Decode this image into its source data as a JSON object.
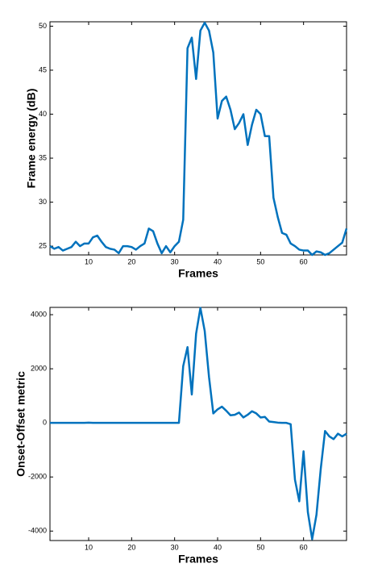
{
  "chart_data": [
    {
      "type": "line",
      "x_label": "Frames",
      "y_label": "Frame energy (dB)",
      "x": [
        1,
        2,
        3,
        4,
        5,
        6,
        7,
        8,
        9,
        10,
        11,
        12,
        13,
        14,
        15,
        16,
        17,
        18,
        19,
        20,
        21,
        22,
        23,
        24,
        25,
        26,
        27,
        28,
        29,
        30,
        31,
        32,
        33,
        34,
        35,
        36,
        37,
        38,
        39,
        40,
        41,
        42,
        43,
        44,
        45,
        46,
        47,
        48,
        49,
        50,
        51,
        52,
        53,
        54,
        55,
        56,
        57,
        58,
        59,
        60,
        61,
        62,
        63,
        64,
        65,
        66,
        67,
        68,
        69,
        70
      ],
      "series": [
        {
          "color": "#0072bd",
          "values": [
            25,
            24.7,
            24.9,
            24.5,
            24.7,
            24.9,
            25.5,
            25,
            25.3,
            25.3,
            26,
            26.2,
            25.5,
            24.9,
            24.7,
            24.6,
            24.2,
            25,
            25,
            24.9,
            24.6,
            25,
            25.3,
            27,
            26.7,
            25.3,
            24.2,
            25,
            24.3,
            25,
            25.5,
            28,
            47.5,
            48.7,
            44,
            49.5,
            50.4,
            49.5,
            47,
            39.5,
            41.5,
            42,
            40.5,
            38.3,
            39,
            40,
            36.5,
            38.8,
            40.5,
            40,
            37.5,
            37.5,
            30.5,
            28.3,
            26.5,
            26.3,
            25.3,
            25,
            24.6,
            24.5,
            24.5,
            24,
            24.4,
            24.3,
            24,
            24.2,
            24.6,
            25,
            25.4,
            27
          ]
        }
      ],
      "xlim": [
        1,
        70
      ],
      "ylim": [
        24,
        50.5
      ],
      "xticks": [
        10,
        20,
        30,
        40,
        50,
        60
      ],
      "yticks": [
        25,
        30,
        35,
        40,
        45,
        50
      ]
    },
    {
      "type": "line",
      "x_label": "Frames",
      "y_label": "Onset-Offset metric",
      "x": [
        1,
        2,
        3,
        4,
        5,
        6,
        7,
        8,
        9,
        10,
        11,
        12,
        13,
        14,
        15,
        16,
        17,
        18,
        19,
        20,
        21,
        22,
        23,
        24,
        25,
        26,
        27,
        28,
        29,
        30,
        31,
        32,
        33,
        34,
        35,
        36,
        37,
        38,
        39,
        40,
        41,
        42,
        43,
        44,
        45,
        46,
        47,
        48,
        49,
        50,
        51,
        52,
        53,
        54,
        55,
        56,
        57,
        58,
        59,
        60,
        61,
        62,
        63,
        64,
        65,
        66,
        67,
        68,
        69,
        70
      ],
      "series": [
        {
          "color": "#0072bd",
          "values": [
            0,
            0,
            0,
            0,
            0,
            0,
            0,
            0,
            0,
            10,
            0,
            0,
            0,
            0,
            0,
            0,
            0,
            0,
            0,
            0,
            0,
            0,
            0,
            0,
            0,
            0,
            0,
            0,
            0,
            0,
            0,
            2100,
            2800,
            1050,
            3300,
            4250,
            3400,
            1700,
            350,
            500,
            600,
            450,
            280,
            300,
            380,
            200,
            300,
            430,
            350,
            200,
            220,
            50,
            30,
            10,
            0,
            0,
            -50,
            -2100,
            -2900,
            -1050,
            -3300,
            -4300,
            -3400,
            -1700,
            -300,
            -500,
            -600,
            -400,
            -500,
            -400
          ]
        }
      ],
      "xlim": [
        1,
        70
      ],
      "ylim": [
        -4350,
        4270
      ],
      "xticks": [
        10,
        20,
        30,
        40,
        50,
        60
      ],
      "yticks": [
        -4000,
        -2000,
        0,
        2000,
        4000
      ]
    }
  ]
}
